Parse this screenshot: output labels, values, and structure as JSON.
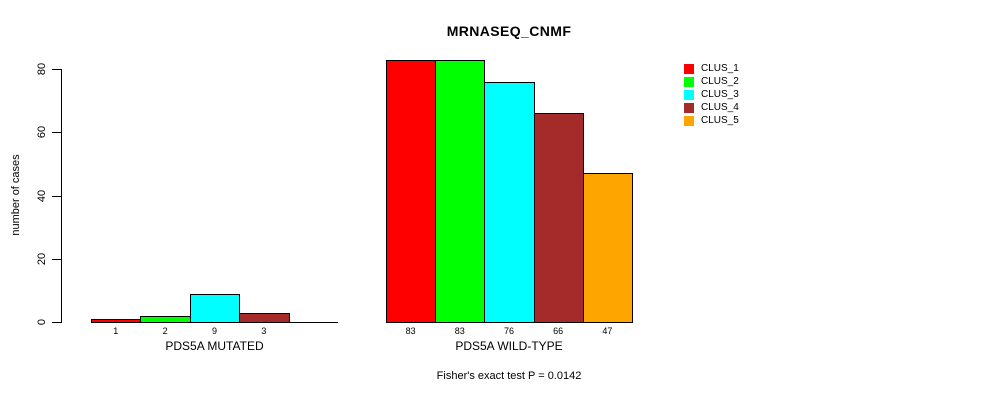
{
  "colors": {
    "background": "#FFFFFF",
    "axis": "#000000",
    "text": "#000000",
    "bar_border": "#000000"
  },
  "chart_data": {
    "type": "bar",
    "title": "MRNASEQ_CNMF",
    "ylabel": "number of cases",
    "ylim": [
      0,
      80
    ],
    "yticks": [
      0,
      20,
      40,
      60,
      80
    ],
    "grid": false,
    "legend": {
      "position": "top-right",
      "entries": [
        {
          "label": "CLUS_1",
          "color": "#FF0000"
        },
        {
          "label": "CLUS_2",
          "color": "#00FF00"
        },
        {
          "label": "CLUS_3",
          "color": "#00FFFF"
        },
        {
          "label": "CLUS_4",
          "color": "#A52A2A"
        },
        {
          "label": "CLUS_5",
          "color": "#FFA500"
        }
      ]
    },
    "series_colors": [
      "#FF0000",
      "#00FF00",
      "#00FFFF",
      "#A52A2A",
      "#FFA500"
    ],
    "groups": [
      {
        "label": "PDS5A MUTATED",
        "categories": [
          "CLUS_1",
          "CLUS_2",
          "CLUS_3",
          "CLUS_4",
          "CLUS_5"
        ],
        "values": [
          1,
          2,
          9,
          3,
          0
        ],
        "bar_labels": [
          "1",
          "2",
          "9",
          "3",
          ""
        ]
      },
      {
        "label": "PDS5A WILD-TYPE",
        "categories": [
          "CLUS_1",
          "CLUS_2",
          "CLUS_3",
          "CLUS_4",
          "CLUS_5"
        ],
        "values": [
          83,
          83,
          76,
          66,
          47
        ],
        "bar_labels": [
          "83",
          "83",
          "76",
          "66",
          "47"
        ]
      }
    ],
    "annotation": "Fisher's exact test P = 0.0142"
  }
}
